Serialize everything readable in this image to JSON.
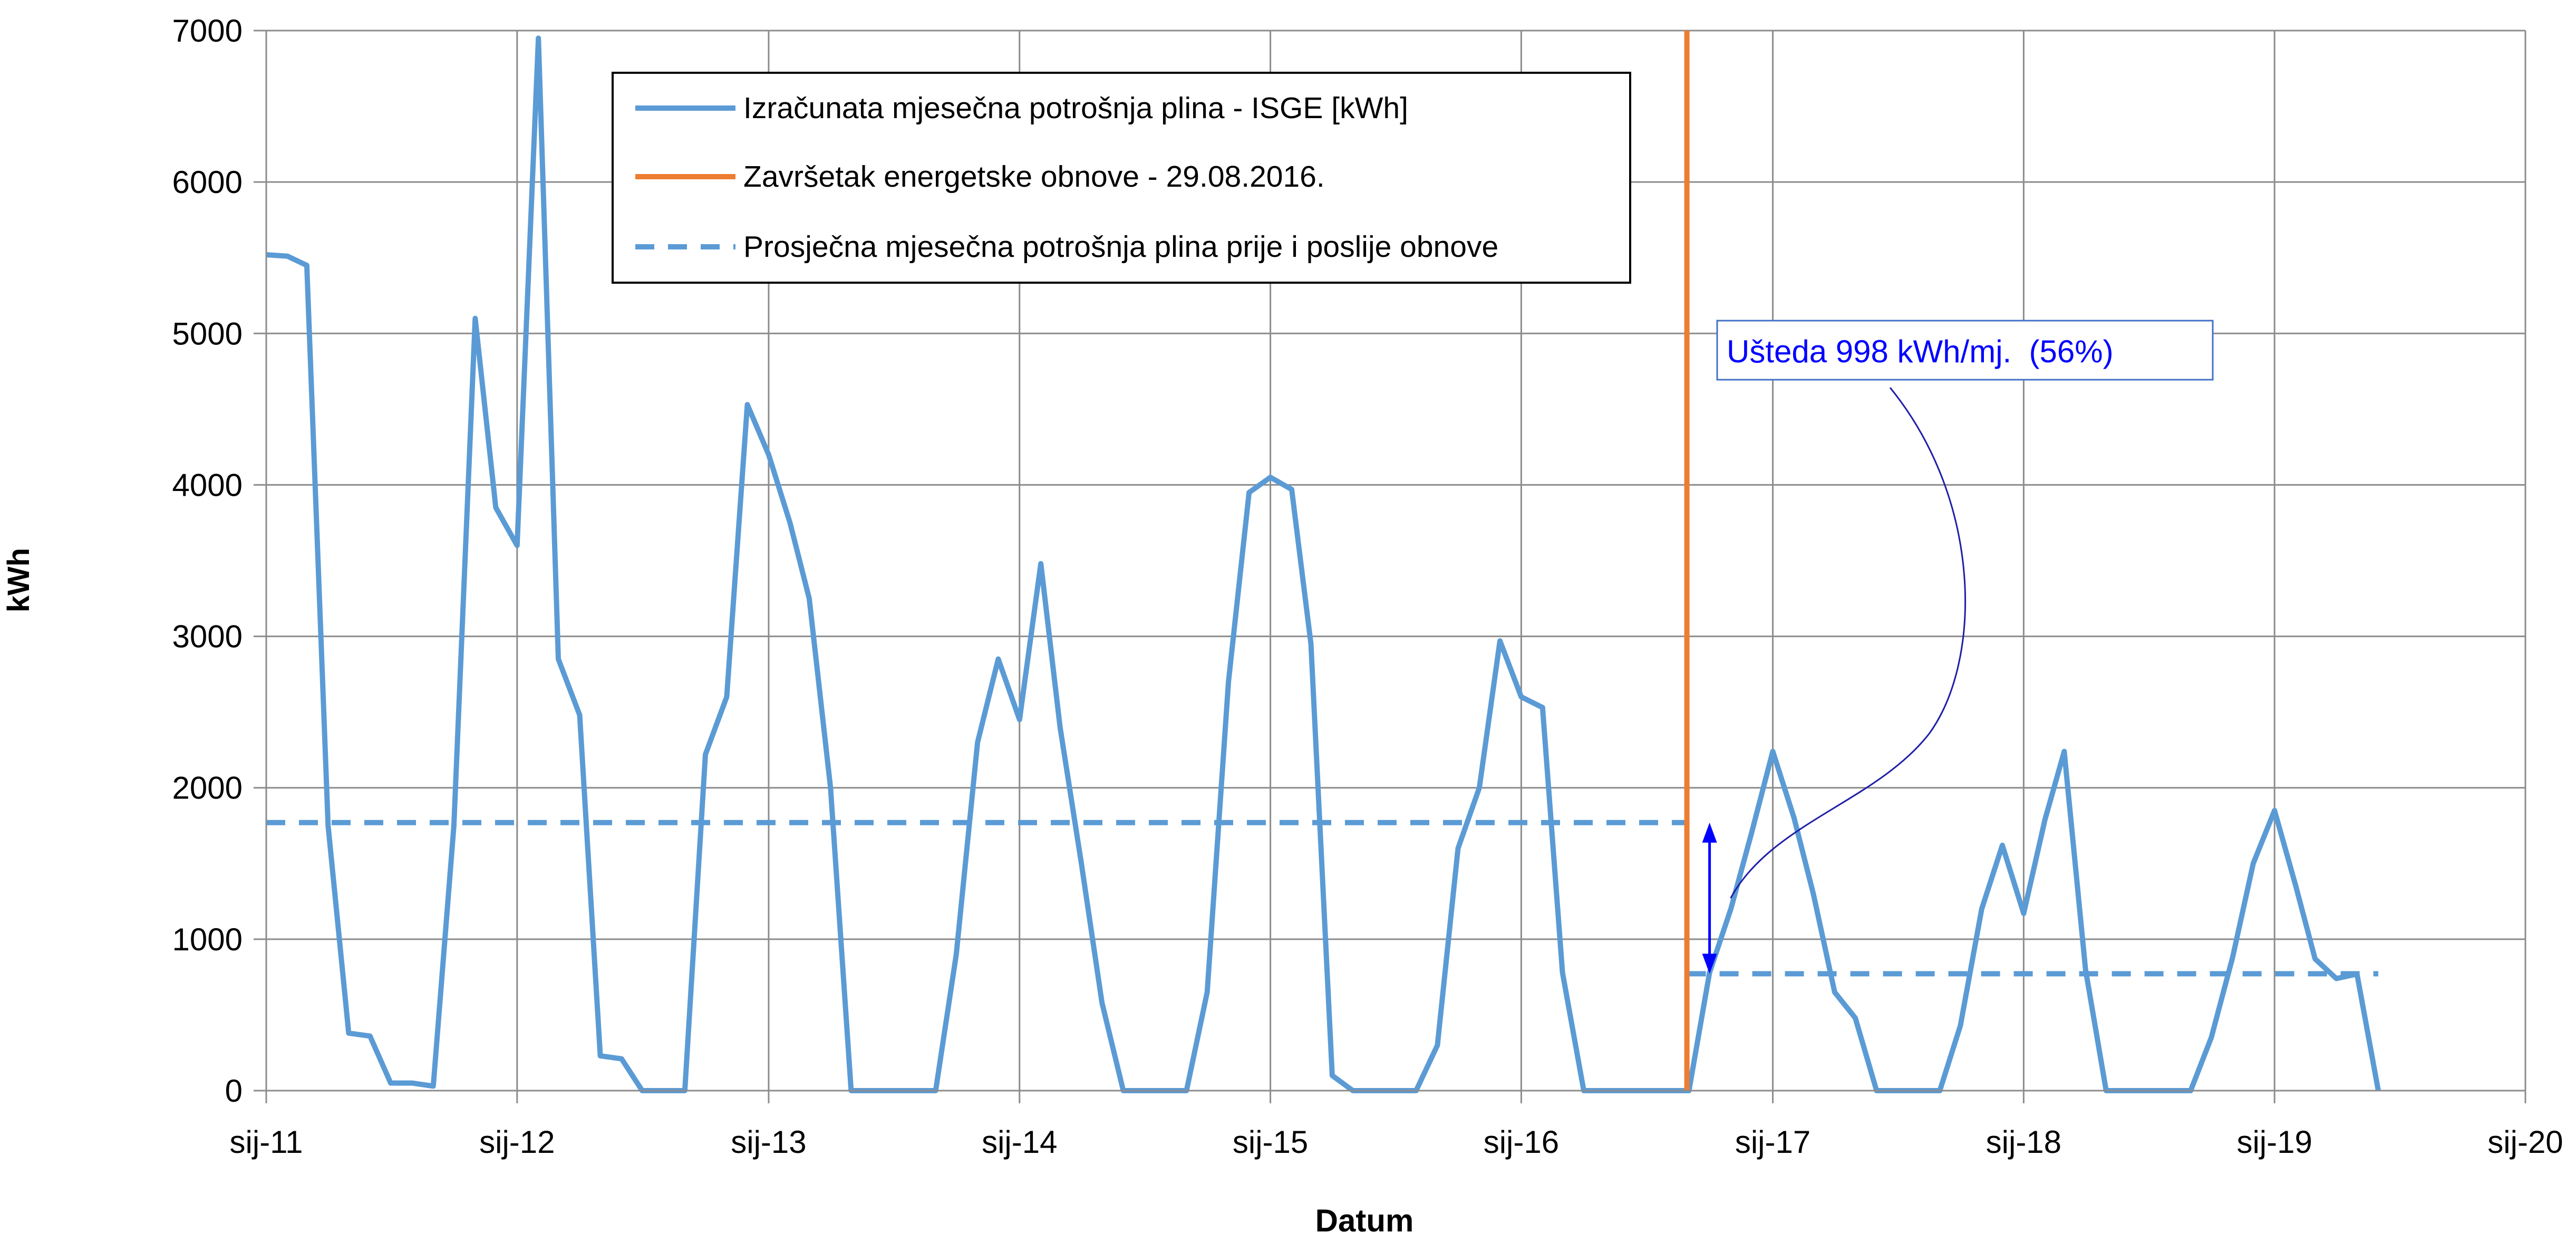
{
  "chart_data": {
    "type": "line",
    "xlabel": "Datum",
    "ylabel": "kWh",
    "ylim": [
      0,
      7000
    ],
    "yticks": [
      "0",
      "1000",
      "2000",
      "3000",
      "4000",
      "5000",
      "6000",
      "7000"
    ],
    "xlim": [
      "2011-01-01",
      "2020-01-01"
    ],
    "xticks": [
      "sij-11",
      "sij-12",
      "sij-13",
      "sij-14",
      "sij-15",
      "sij-16",
      "sij-17",
      "sij-18",
      "sij-19",
      "sij-20"
    ],
    "grid": true,
    "legend_position": "top-center",
    "series": [
      {
        "name": "Izračunata mjesečna potrošnja plina - ISGE [kWh]",
        "color": "#5b9bd5",
        "style": "solid",
        "points": [
          [
            "2011-01-01",
            5520
          ],
          [
            "2011-02-01",
            5510
          ],
          [
            "2011-03-01",
            5450
          ],
          [
            "2011-04-01",
            1750
          ],
          [
            "2011-05-01",
            380
          ],
          [
            "2011-06-01",
            360
          ],
          [
            "2011-07-01",
            50
          ],
          [
            "2011-08-01",
            50
          ],
          [
            "2011-09-01",
            30
          ],
          [
            "2011-10-01",
            1750
          ],
          [
            "2011-11-01",
            5100
          ],
          [
            "2011-12-01",
            3850
          ],
          [
            "2012-01-01",
            3600
          ],
          [
            "2012-02-01",
            6950
          ],
          [
            "2012-03-01",
            2850
          ],
          [
            "2012-04-01",
            2480
          ],
          [
            "2012-05-01",
            230
          ],
          [
            "2012-06-01",
            210
          ],
          [
            "2012-07-01",
            0
          ],
          [
            "2012-08-01",
            0
          ],
          [
            "2012-09-01",
            0
          ],
          [
            "2012-10-01",
            2220
          ],
          [
            "2012-11-01",
            2600
          ],
          [
            "2012-12-01",
            4530
          ],
          [
            "2013-01-01",
            4200
          ],
          [
            "2013-02-01",
            3750
          ],
          [
            "2013-03-01",
            3250
          ],
          [
            "2013-04-01",
            2000
          ],
          [
            "2013-05-01",
            0
          ],
          [
            "2013-06-01",
            0
          ],
          [
            "2013-07-01",
            0
          ],
          [
            "2013-08-01",
            0
          ],
          [
            "2013-09-01",
            0
          ],
          [
            "2013-10-01",
            900
          ],
          [
            "2013-11-01",
            2300
          ],
          [
            "2013-12-01",
            2850
          ],
          [
            "2014-01-01",
            2450
          ],
          [
            "2014-02-01",
            3480
          ],
          [
            "2014-03-01",
            2400
          ],
          [
            "2014-04-01",
            1500
          ],
          [
            "2014-05-01",
            580
          ],
          [
            "2014-06-01",
            0
          ],
          [
            "2014-07-01",
            0
          ],
          [
            "2014-08-01",
            0
          ],
          [
            "2014-09-01",
            0
          ],
          [
            "2014-10-01",
            650
          ],
          [
            "2014-11-01",
            2700
          ],
          [
            "2014-12-01",
            3950
          ],
          [
            "2015-01-01",
            4050
          ],
          [
            "2015-02-01",
            3970
          ],
          [
            "2015-03-01",
            2950
          ],
          [
            "2015-04-01",
            100
          ],
          [
            "2015-05-01",
            0
          ],
          [
            "2015-06-01",
            0
          ],
          [
            "2015-07-01",
            0
          ],
          [
            "2015-08-01",
            0
          ],
          [
            "2015-09-01",
            300
          ],
          [
            "2015-10-01",
            1600
          ],
          [
            "2015-11-01",
            2000
          ],
          [
            "2015-12-01",
            2970
          ],
          [
            "2016-01-01",
            2600
          ],
          [
            "2016-02-01",
            2530
          ],
          [
            "2016-03-01",
            780
          ],
          [
            "2016-04-01",
            0
          ],
          [
            "2016-05-01",
            0
          ],
          [
            "2016-06-01",
            0
          ],
          [
            "2016-07-01",
            0
          ],
          [
            "2016-08-01",
            0
          ],
          [
            "2016-09-01",
            0
          ],
          [
            "2016-10-01",
            780
          ],
          [
            "2016-11-01",
            1200
          ],
          [
            "2016-12-01",
            1700
          ],
          [
            "2017-01-01",
            2240
          ],
          [
            "2017-02-01",
            1800
          ],
          [
            "2017-03-01",
            1300
          ],
          [
            "2017-04-01",
            650
          ],
          [
            "2017-05-01",
            480
          ],
          [
            "2017-06-01",
            0
          ],
          [
            "2017-07-01",
            0
          ],
          [
            "2017-08-01",
            0
          ],
          [
            "2017-09-01",
            0
          ],
          [
            "2017-10-01",
            430
          ],
          [
            "2017-11-01",
            1200
          ],
          [
            "2017-12-01",
            1620
          ],
          [
            "2018-01-01",
            1170
          ],
          [
            "2018-02-01",
            1790
          ],
          [
            "2018-03-01",
            2240
          ],
          [
            "2018-04-01",
            800
          ],
          [
            "2018-05-01",
            0
          ],
          [
            "2018-06-01",
            0
          ],
          [
            "2018-07-01",
            0
          ],
          [
            "2018-08-01",
            0
          ],
          [
            "2018-09-01",
            0
          ],
          [
            "2018-10-01",
            350
          ],
          [
            "2018-11-01",
            880
          ],
          [
            "2018-12-01",
            1500
          ],
          [
            "2019-01-01",
            1850
          ],
          [
            "2019-02-01",
            1350
          ],
          [
            "2019-03-01",
            870
          ],
          [
            "2019-04-01",
            740
          ],
          [
            "2019-05-01",
            770
          ],
          [
            "2019-06-01",
            0
          ]
        ]
      },
      {
        "name": "Završetak energetske obnove - 29.08.2016.",
        "color": "#ed7d31",
        "style": "vertical",
        "points": [
          [
            "2016-08-29",
            0
          ],
          [
            "2016-08-29",
            7000
          ]
        ]
      },
      {
        "name": "Prosječna mjesečna potrošnja plina prije i poslije obnove",
        "color": "#5b9bd5",
        "style": "dashed",
        "segments": [
          [
            [
              "2011-01-01",
              1770
            ],
            [
              "2016-08-29",
              1770
            ]
          ],
          [
            [
              "2016-08-29",
              772
            ],
            [
              "2019-06-01",
              772
            ]
          ]
        ]
      }
    ],
    "annotation": {
      "text": "Ušteda 998 kWh/mj.  (56%)",
      "color": "#0000ff",
      "arrow_date": "2016-10-01",
      "arrow_from": 1770,
      "arrow_to": 772
    }
  }
}
